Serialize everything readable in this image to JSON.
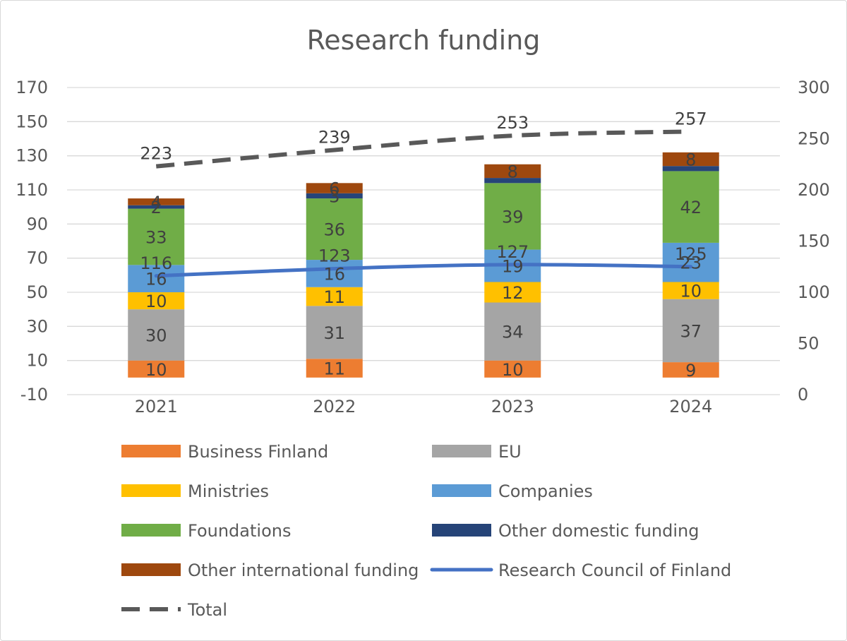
{
  "chart_data": {
    "type": "bar",
    "stacked": true,
    "title": "Research funding",
    "categories": [
      "2021",
      "2022",
      "2023",
      "2024"
    ],
    "y_left": {
      "range": [
        -10,
        170
      ],
      "ticks": [
        -10,
        10,
        30,
        50,
        70,
        90,
        110,
        130,
        150,
        170
      ]
    },
    "y_right": {
      "range": [
        0,
        300
      ],
      "ticks": [
        0,
        50,
        100,
        150,
        200,
        250,
        300
      ]
    },
    "grid": true,
    "legend_position": "bottom",
    "series": [
      {
        "name": "Business Finland",
        "kind": "bar",
        "axis": "left",
        "color": "#ED7D31",
        "values": [
          10,
          11,
          10,
          9
        ],
        "labels": [
          "10",
          "11",
          "10",
          "9"
        ]
      },
      {
        "name": "EU",
        "kind": "bar",
        "axis": "left",
        "color": "#A5A5A5",
        "values": [
          30,
          31,
          34,
          37
        ],
        "labels": [
          "30",
          "31",
          "34",
          "37"
        ]
      },
      {
        "name": "Ministries",
        "kind": "bar",
        "axis": "left",
        "color": "#FFC000",
        "values": [
          10,
          11,
          12,
          10
        ],
        "labels": [
          "10",
          "11",
          "12",
          "10"
        ]
      },
      {
        "name": "Companies",
        "kind": "bar",
        "axis": "left",
        "color": "#5B9BD5",
        "values": [
          16,
          16,
          19,
          23
        ],
        "labels": [
          "16",
          "16",
          "19",
          "23"
        ]
      },
      {
        "name": "Foundations",
        "kind": "bar",
        "axis": "left",
        "color": "#70AD47",
        "values": [
          33,
          36,
          39,
          42
        ],
        "labels": [
          "33",
          "36",
          "39",
          "42"
        ]
      },
      {
        "name": "Other domestic funding",
        "kind": "bar",
        "axis": "left",
        "color": "#264478",
        "values": [
          2,
          3,
          3,
          3
        ],
        "labels": [
          "2",
          "3",
          "",
          ""
        ]
      },
      {
        "name": "Other international funding",
        "kind": "bar",
        "axis": "left",
        "color": "#9E480E",
        "values": [
          4,
          6,
          8,
          8
        ],
        "labels": [
          "4",
          "6",
          "8",
          "8"
        ]
      },
      {
        "name": "Research Council of Finland",
        "kind": "line",
        "axis": "right",
        "color": "#4472C4",
        "dash": "solid",
        "values": [
          116,
          123,
          127,
          125
        ],
        "labels": [
          "116",
          "123",
          "127",
          "125"
        ]
      },
      {
        "name": "Total",
        "kind": "line",
        "axis": "right",
        "color": "#595959",
        "dash": "dashed",
        "values": [
          223,
          239,
          253,
          257
        ],
        "labels": [
          "223",
          "239",
          "253",
          "257"
        ]
      }
    ]
  }
}
